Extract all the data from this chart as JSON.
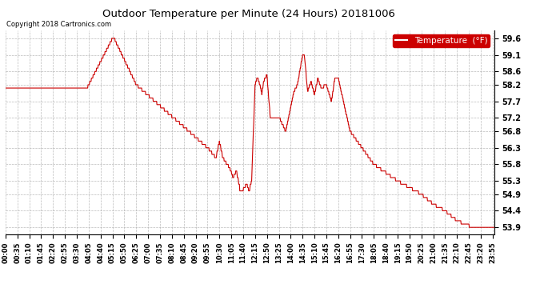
{
  "title": "Outdoor Temperature per Minute (24 Hours) 20181006",
  "copyright_text": "Copyright 2018 Cartronics.com",
  "legend_label": "Temperature  (°F)",
  "line_color": "#cc0000",
  "legend_bg": "#cc0000",
  "legend_text_color": "#ffffff",
  "background_color": "#ffffff",
  "grid_color": "#aaaaaa",
  "y_ticks": [
    53.9,
    54.4,
    54.9,
    55.3,
    55.8,
    56.3,
    56.8,
    57.2,
    57.7,
    58.2,
    58.6,
    59.1,
    59.6
  ],
  "y_min": 53.7,
  "y_max": 59.85,
  "x_tick_labels": [
    "00:00",
    "00:35",
    "01:10",
    "01:45",
    "02:20",
    "02:55",
    "03:30",
    "04:05",
    "04:40",
    "05:15",
    "05:50",
    "06:25",
    "07:00",
    "07:35",
    "08:10",
    "08:45",
    "09:20",
    "09:55",
    "10:30",
    "11:05",
    "11:40",
    "12:15",
    "12:50",
    "13:25",
    "14:00",
    "14:35",
    "15:10",
    "15:45",
    "16:20",
    "16:55",
    "17:30",
    "18:05",
    "18:40",
    "19:15",
    "19:50",
    "20:25",
    "21:00",
    "21:35",
    "22:10",
    "22:45",
    "23:20",
    "23:55"
  ]
}
